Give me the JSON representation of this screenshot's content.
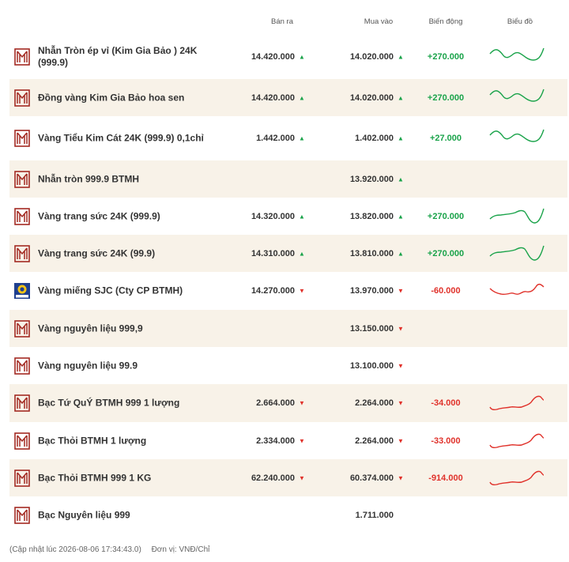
{
  "header": {
    "sell_label": "Bán ra",
    "buy_label": "Mua vào",
    "change_label": "Biến động",
    "chart_label": "Biểu đồ"
  },
  "colors": {
    "up": "#1aa34a",
    "down": "#e0312a",
    "alt_row": "#f8f2e8",
    "logo": "#a32a22"
  },
  "rows": [
    {
      "name": "Nhẫn Tròn ép vỉ (Kim Gia Bảo ) 24K (999.9)",
      "logo": "btmh-logo-icon",
      "sell": "14.420.000",
      "sell_dir": "up",
      "buy": "14.020.000",
      "buy_dir": "up",
      "change": "+270.000",
      "change_dir": "up",
      "trend": "up"
    },
    {
      "name": "Đồng vàng Kim Gia Bảo hoa sen",
      "logo": "btmh-logo-icon",
      "sell": "14.420.000",
      "sell_dir": "up",
      "buy": "14.020.000",
      "buy_dir": "up",
      "change": "+270.000",
      "change_dir": "up",
      "trend": "up"
    },
    {
      "name": "Vàng Tiểu Kim Cát 24K (999.9) 0,1chỉ",
      "logo": "btmh-logo-icon",
      "sell": "1.442.000",
      "sell_dir": "up",
      "buy": "1.402.000",
      "buy_dir": "up",
      "change": "+27.000",
      "change_dir": "up",
      "trend": "up"
    },
    {
      "name": "Nhẫn tròn 999.9 BTMH",
      "logo": "btmh-logo-icon",
      "sell": "",
      "sell_dir": "",
      "buy": "13.920.000",
      "buy_dir": "up",
      "change": "",
      "change_dir": "",
      "trend": ""
    },
    {
      "name": "Vàng trang sức 24K (999.9)",
      "logo": "btmh-logo-icon",
      "sell": "14.320.000",
      "sell_dir": "up",
      "buy": "13.820.000",
      "buy_dir": "up",
      "change": "+270.000",
      "change_dir": "up",
      "trend": "up2"
    },
    {
      "name": "Vàng trang sức 24K (99.9)",
      "logo": "btmh-logo-icon",
      "sell": "14.310.000",
      "sell_dir": "up",
      "buy": "13.810.000",
      "buy_dir": "up",
      "change": "+270.000",
      "change_dir": "up",
      "trend": "up2"
    },
    {
      "name": "Vàng miếng SJC (Cty CP BTMH)",
      "logo": "sjc-logo-icon",
      "sell": "14.270.000",
      "sell_dir": "down",
      "buy": "13.970.000",
      "buy_dir": "down",
      "change": "-60.000",
      "change_dir": "down",
      "trend": "down"
    },
    {
      "name": "Vàng nguyên liệu 999,9",
      "logo": "btmh-logo-icon",
      "sell": "",
      "sell_dir": "",
      "buy": "13.150.000",
      "buy_dir": "down",
      "change": "",
      "change_dir": "",
      "trend": ""
    },
    {
      "name": "Vàng nguyên liệu 99.9",
      "logo": "btmh-logo-icon",
      "sell": "",
      "sell_dir": "",
      "buy": "13.100.000",
      "buy_dir": "down",
      "change": "",
      "change_dir": "",
      "trend": ""
    },
    {
      "name": "Bạc Tứ QuÝ BTMH 999 1 lượng",
      "logo": "btmh-logo-icon",
      "sell": "2.664.000",
      "sell_dir": "down",
      "buy": "2.264.000",
      "buy_dir": "down",
      "change": "-34.000",
      "change_dir": "down",
      "trend": "down2"
    },
    {
      "name": "Bạc Thỏi BTMH 1 lượng",
      "logo": "btmh-logo-icon",
      "sell": "2.334.000",
      "sell_dir": "down",
      "buy": "2.264.000",
      "buy_dir": "down",
      "change": "-33.000",
      "change_dir": "down",
      "trend": "down2"
    },
    {
      "name": "Bạc Thỏi BTMH 999 1 KG",
      "logo": "btmh-logo-icon",
      "sell": "62.240.000",
      "sell_dir": "down",
      "buy": "60.374.000",
      "buy_dir": "down",
      "change": "-914.000",
      "change_dir": "down",
      "trend": "down2"
    },
    {
      "name": "Bạc Nguyên liệu 999",
      "logo": "btmh-logo-icon",
      "sell": "",
      "sell_dir": "",
      "buy": "1.711.000",
      "buy_dir": "",
      "change": "",
      "change_dir": "",
      "trend": ""
    }
  ],
  "footer": {
    "updated": "(Cập nhật lúc 2026-08-06 17:34:43.0)",
    "unit": "Đơn vị: VNĐ/Chỉ"
  }
}
